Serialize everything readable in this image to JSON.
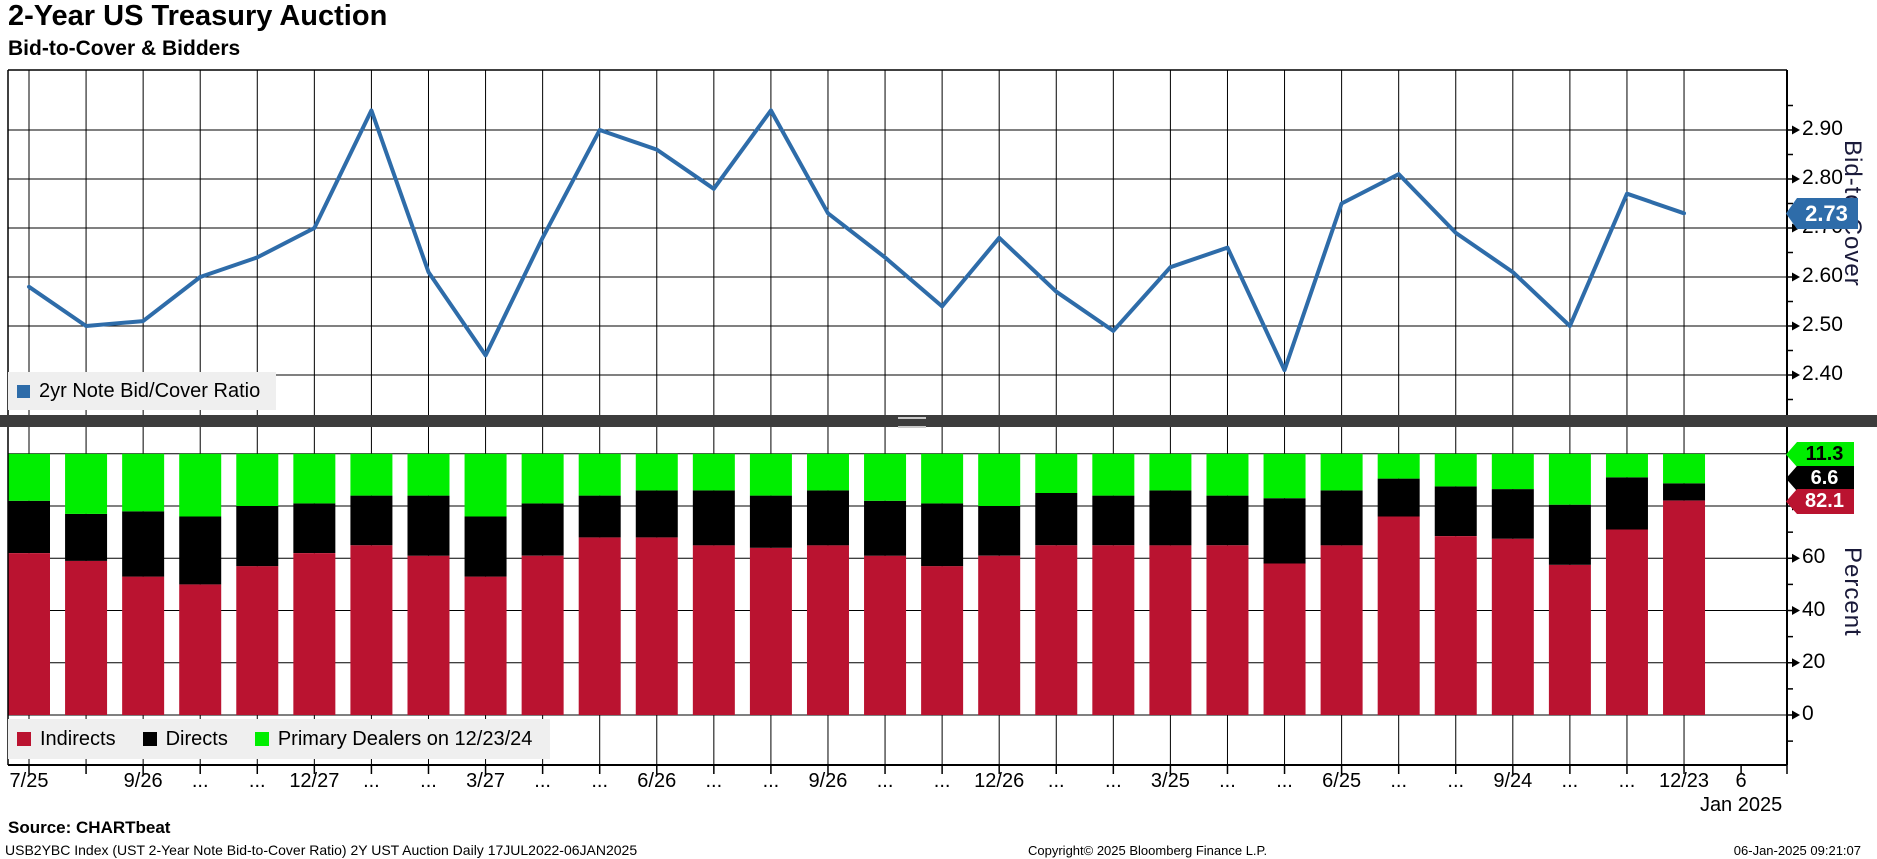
{
  "header": {
    "title": "2-Year US Treasury Auction",
    "subtitle": "Bid-to-Cover & Bidders"
  },
  "colors": {
    "line": "#2e6ca9",
    "badge_line_bg": "#2e6ca9",
    "indirects": "#ba1330",
    "directs": "#000000",
    "primary_dealers": "#00ee00",
    "legend_bg": "#efefef",
    "grid": "#000000",
    "divider": "#3c3c3c",
    "white": "#ffffff",
    "black": "#000000",
    "axis_label_color": "#1a1a3a"
  },
  "top_panel": {
    "legend_label": "2yr Note Bid/Cover Ratio",
    "axis_label": "Bid-to-Cover",
    "badge": "2.73"
  },
  "bottom_panel": {
    "axis_label": "Percent",
    "legend": [
      {
        "label": "Indirects"
      },
      {
        "label": "Directs"
      },
      {
        "label": "Primary Dealers on 12/23/24"
      }
    ],
    "badges": [
      {
        "text": "11.3"
      },
      {
        "text": "6.6"
      },
      {
        "text": "82.1"
      }
    ]
  },
  "x_axis": {
    "sub_label": "Jan 2025"
  },
  "footer": {
    "source": "Source: CHARTbeat",
    "description": "USB2YBC Index (UST 2-Year Note Bid-to-Cover Ratio) 2Y UST Auction  Daily 17JUL2022-06JAN2025",
    "copyright": "Copyright© 2025 Bloomberg Finance L.P.",
    "timestamp": "06-Jan-2025 09:21:07"
  },
  "chart_data": [
    {
      "type": "line",
      "title": "2yr Note Bid/Cover Ratio",
      "ylabel": "Bid-to-Cover",
      "ylim": [
        2.325,
        3.02
      ],
      "y_tick_labels": [
        "2.90",
        "2.80",
        "2.70",
        "2.60",
        "2.50",
        "2.40"
      ],
      "y_tick_values": [
        2.9,
        2.8,
        2.7,
        2.6,
        2.5,
        2.4
      ],
      "last_value_badge": 2.73,
      "x_tick_labels": [
        "7/25",
        "",
        "9/26",
        "...",
        "...",
        "12/27",
        "...",
        "...",
        "3/27",
        "...",
        "...",
        "6/26",
        "...",
        "...",
        "9/26",
        "...",
        "...",
        "12/26",
        "...",
        "...",
        "3/25",
        "...",
        "...",
        "6/25",
        "...",
        "...",
        "9/24",
        "...",
        "...",
        "12/23",
        "6"
      ],
      "x_sub_label": "Jan 2025",
      "values": [
        2.58,
        2.5,
        2.51,
        2.6,
        2.64,
        2.7,
        2.94,
        2.61,
        2.44,
        2.68,
        2.9,
        2.86,
        2.78,
        2.94,
        2.73,
        2.64,
        2.54,
        2.68,
        2.57,
        2.49,
        2.62,
        2.66,
        2.41,
        2.75,
        2.81,
        2.69,
        2.61,
        2.5,
        2.77,
        2.73
      ]
    },
    {
      "type": "bar",
      "stacked": true,
      "ylabel": "Percent",
      "ylim": [
        0,
        100
      ],
      "y_tick_labels": [
        "60",
        "40",
        "20",
        "0"
      ],
      "y_tick_values": [
        60,
        40,
        20,
        0
      ],
      "y_gridline_values": [
        100,
        80,
        60,
        40,
        20,
        0
      ],
      "last_values": {
        "indirects": 82.1,
        "directs": 6.6,
        "primary_dealers": 11.3
      },
      "series": [
        {
          "name": "Indirects",
          "values": [
            62,
            59,
            53,
            50,
            57,
            62,
            65,
            61,
            53,
            61,
            68,
            68,
            65,
            64,
            65,
            61,
            57,
            61,
            65,
            65,
            65,
            65,
            58,
            65,
            76,
            68.5,
            67.5,
            57.5,
            71,
            82.1
          ]
        },
        {
          "name": "Directs",
          "values": [
            20,
            18,
            25,
            26,
            23,
            19,
            19,
            23,
            23,
            20,
            16,
            18,
            21,
            20,
            21,
            21,
            24,
            19,
            20,
            19,
            21,
            19,
            25,
            21,
            14.5,
            19,
            19,
            23,
            20,
            6.6
          ]
        },
        {
          "name": "Primary Dealers",
          "values": [
            18,
            23,
            22,
            24,
            20,
            19,
            16,
            16,
            24,
            19,
            16,
            14,
            14,
            16,
            14,
            18,
            19,
            20,
            15,
            16,
            14,
            16,
            17,
            14,
            9.5,
            12.5,
            13.5,
            19.5,
            9,
            11.3
          ]
        }
      ]
    }
  ]
}
